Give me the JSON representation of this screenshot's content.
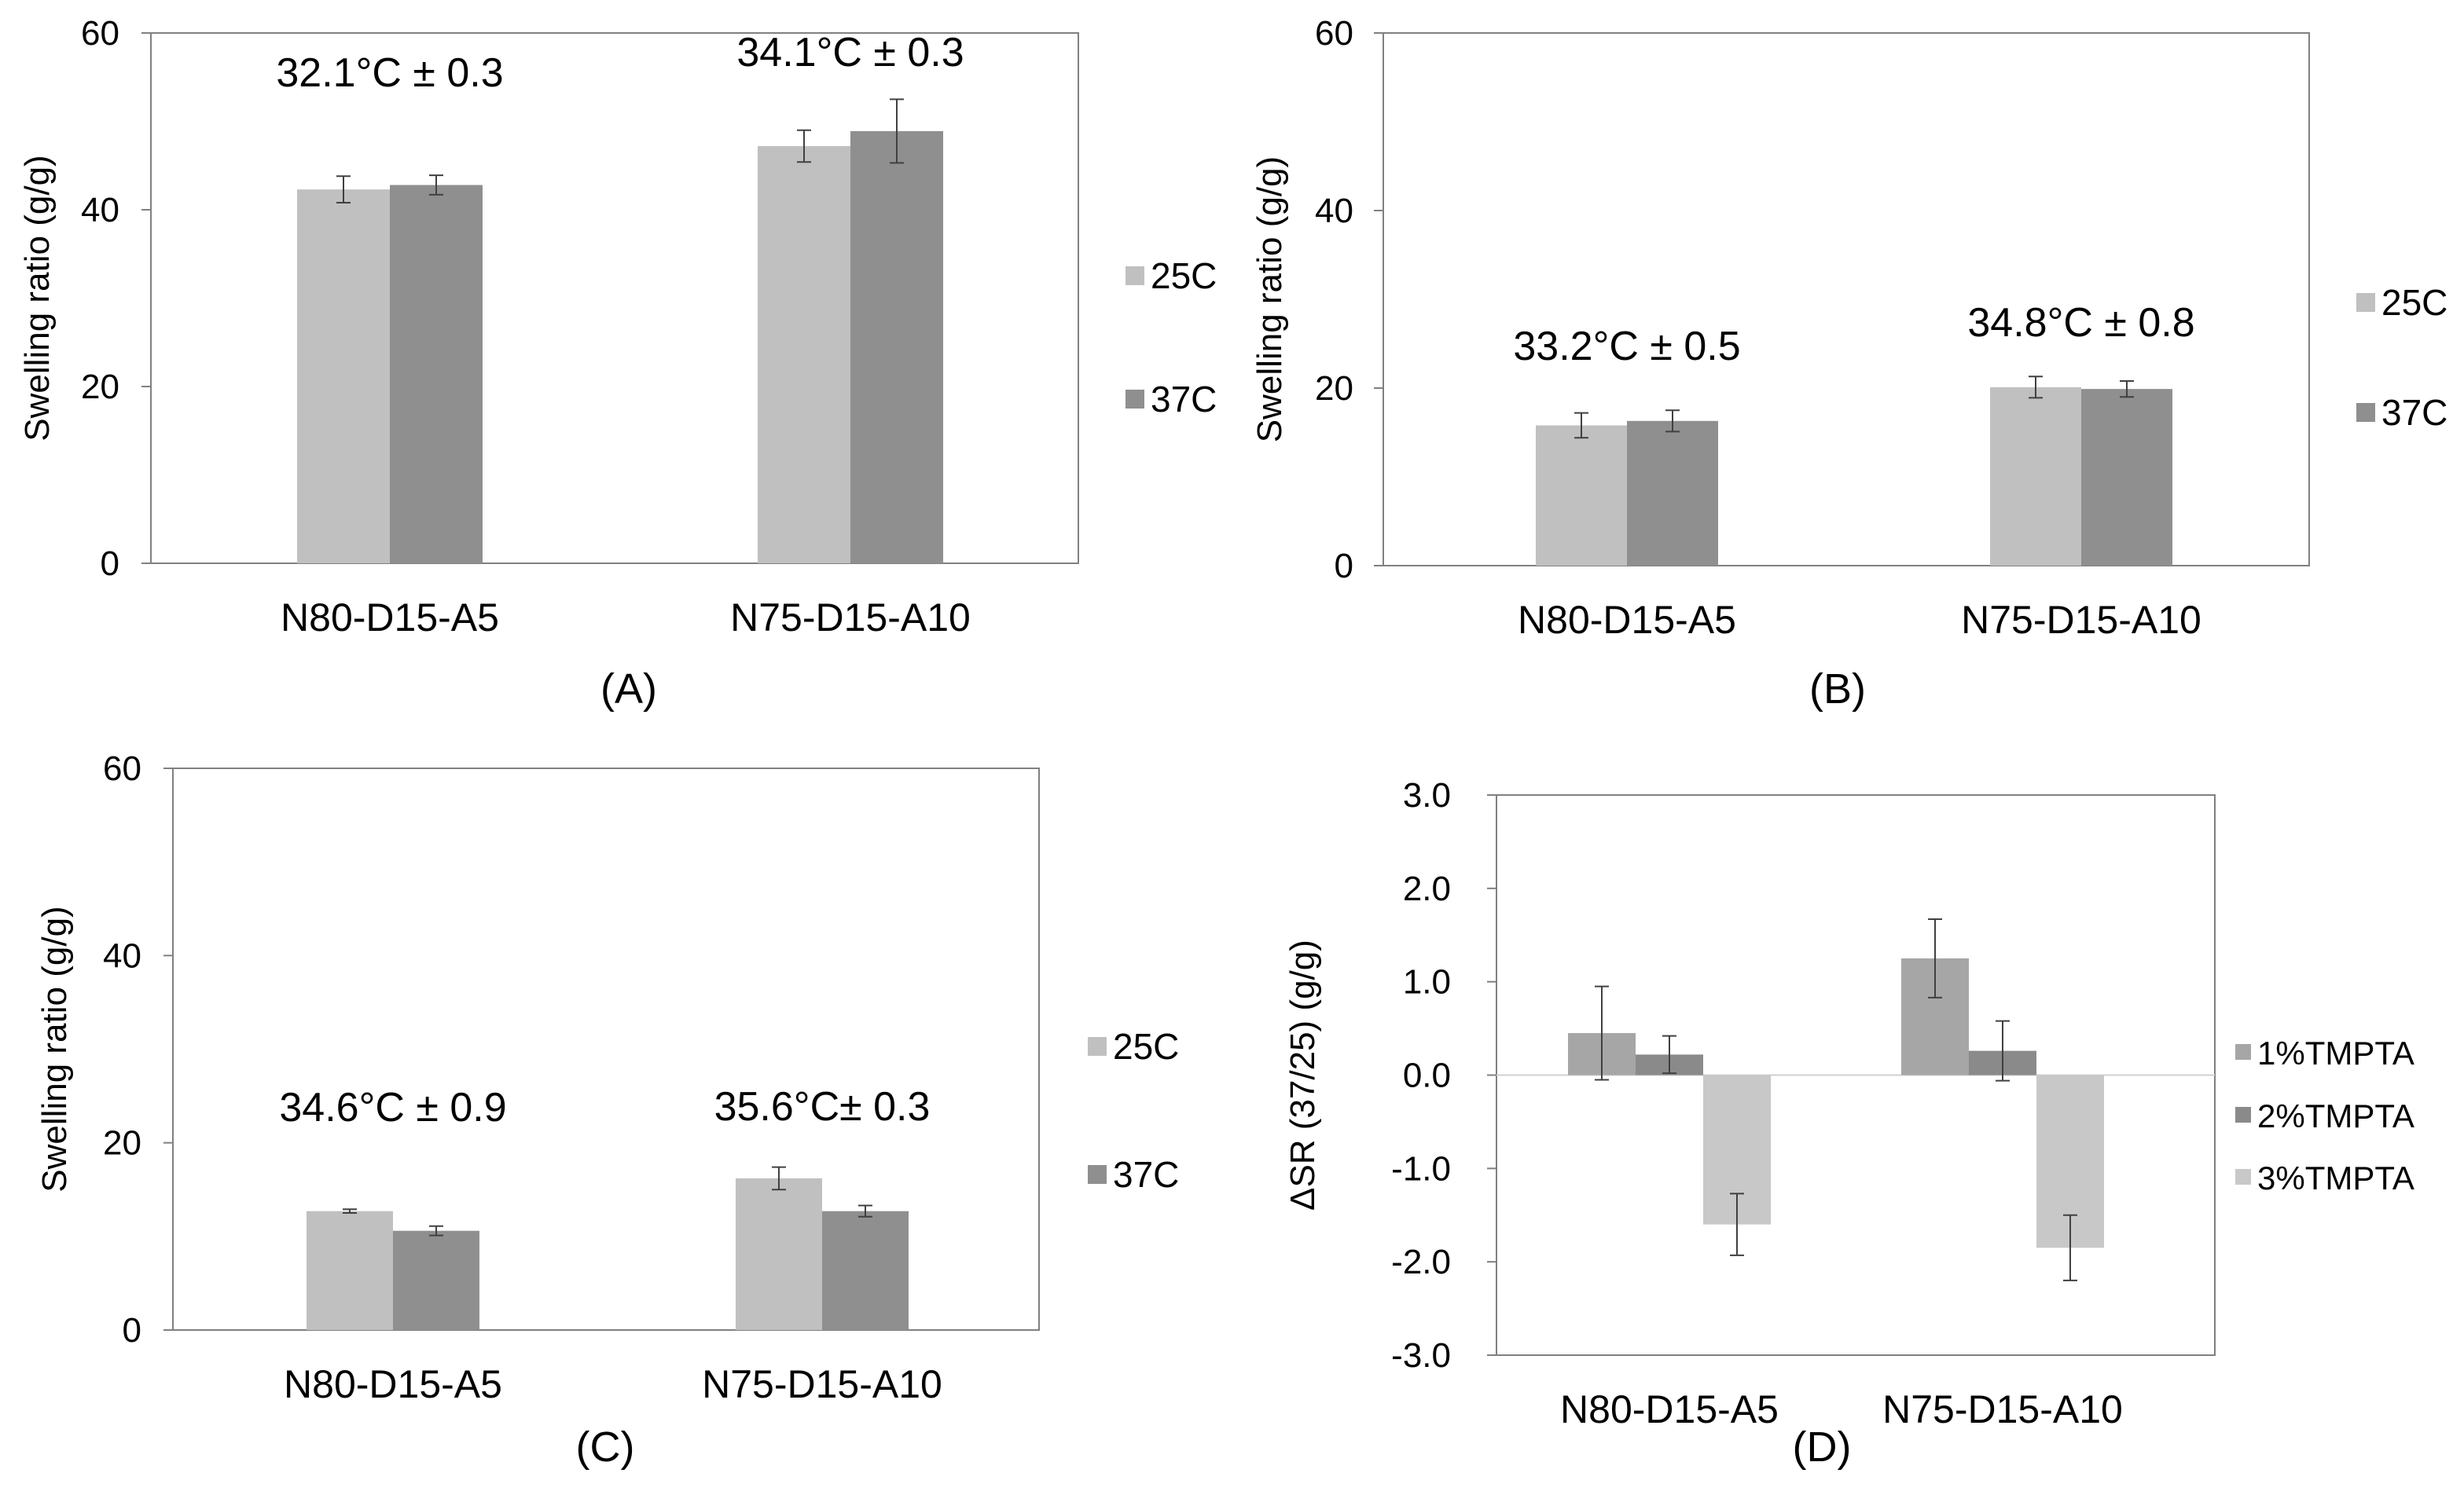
{
  "colors": {
    "bar_25c": "#c0c0c0",
    "bar_37c": "#8f8f8f",
    "bar_1tmpta": "#a6a6a6",
    "bar_2tmpta": "#8a8a8a",
    "bar_3tmpta": "#c8c8c8",
    "axis": "#808080",
    "error": "#404040"
  },
  "chart_data": [
    {
      "panel_label": "(A)",
      "type": "bar",
      "title": "",
      "xlabel": "",
      "ylabel": "Swelling ratio (g/g)",
      "categories": [
        "N80-D15-A5",
        "N75-D15-A10"
      ],
      "ylim": [
        0,
        60
      ],
      "yticks": [
        0,
        20,
        40,
        60
      ],
      "ytick_labels": [
        "0",
        "20",
        "40",
        "60"
      ],
      "grid": false,
      "legend_position": "right",
      "series": [
        {
          "name": "25C",
          "values": [
            42.3,
            47.2
          ],
          "errors": [
            1.5,
            1.8
          ]
        },
        {
          "name": "37C",
          "values": [
            42.8,
            48.9
          ],
          "errors": [
            1.1,
            3.6
          ]
        }
      ],
      "annotations": [
        "32.1°C ± 0.3",
        "34.1°C ± 0.3"
      ]
    },
    {
      "panel_label": "(B)",
      "type": "bar",
      "title": "",
      "xlabel": "",
      "ylabel": "Swelling ratio (g/g)",
      "categories": [
        "N80-D15-A5",
        "N75-D15-A10"
      ],
      "ylim": [
        0,
        60
      ],
      "yticks": [
        0,
        20,
        40,
        60
      ],
      "ytick_labels": [
        "0",
        "20",
        "40",
        "60"
      ],
      "grid": false,
      "legend_position": "right",
      "series": [
        {
          "name": "25C",
          "values": [
            15.8,
            20.1
          ],
          "errors": [
            1.4,
            1.2
          ]
        },
        {
          "name": "37C",
          "values": [
            16.3,
            19.9
          ],
          "errors": [
            1.2,
            0.9
          ]
        }
      ],
      "annotations": [
        "33.2°C ± 0.5",
        "34.8°C ± 0.8"
      ]
    },
    {
      "panel_label": "(C)",
      "type": "bar",
      "title": "",
      "xlabel": "",
      "ylabel": "Swelling ratio (g/g)",
      "categories": [
        "N80-D15-A5",
        "N75-D15-A10"
      ],
      "ylim": [
        0,
        60
      ],
      "yticks": [
        0,
        20,
        40,
        60
      ],
      "ytick_labels": [
        "0",
        "20",
        "40",
        "60"
      ],
      "grid": false,
      "legend_position": "right",
      "series": [
        {
          "name": "25C",
          "values": [
            12.7,
            16.2
          ],
          "errors": [
            0.2,
            1.2
          ]
        },
        {
          "name": "37C",
          "values": [
            10.6,
            12.7
          ],
          "errors": [
            0.5,
            0.6
          ]
        }
      ],
      "annotations": [
        "34.6°C ± 0.9",
        "35.6°C± 0.3"
      ]
    },
    {
      "panel_label": "(D)",
      "type": "bar",
      "title": "",
      "xlabel": "",
      "ylabel": "ΔSR (37/25) (g/g)",
      "categories": [
        "N80-D15-A5",
        "N75-D15-A10"
      ],
      "ylim": [
        -3.0,
        3.0
      ],
      "yticks": [
        -3,
        -2,
        -1,
        0,
        1,
        2,
        3
      ],
      "ytick_labels": [
        "-3.0",
        "-2.0",
        "-1.0",
        "0.0",
        "1.0",
        "2.0",
        "3.0"
      ],
      "grid": false,
      "legend_position": "right",
      "series": [
        {
          "name": "1%TMPTA",
          "values": [
            0.45,
            1.25
          ],
          "errors": [
            0.5,
            0.42
          ]
        },
        {
          "name": "2%TMPTA",
          "values": [
            0.22,
            0.26
          ],
          "errors": [
            0.2,
            0.32
          ]
        },
        {
          "name": "3%TMPTA",
          "values": [
            -1.6,
            -1.85
          ],
          "errors": [
            0.33,
            0.35
          ]
        }
      ],
      "annotations": []
    }
  ]
}
